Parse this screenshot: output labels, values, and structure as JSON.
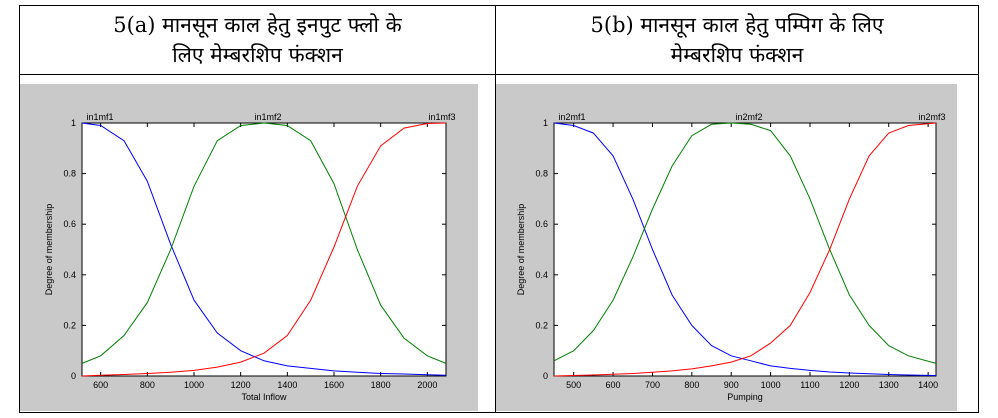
{
  "captions": {
    "left": {
      "line1": "5(a) मानसून काल हेतु इनपुट फ्लो के",
      "line2": "लिए मेम्बरशिप फंक्शन"
    },
    "right": {
      "line1": "5(b) मानसून काल हेतु पम्पिग के लिए",
      "line2": "मेम्बरशिप फंक्शन"
    }
  },
  "chart_data": [
    {
      "type": "line",
      "xlabel": "Total Inflow",
      "ylabel": "Degree of membership",
      "xlim": [
        520,
        2080
      ],
      "ylim": [
        0,
        1
      ],
      "xticks": [
        "600",
        "800",
        "1000",
        "1200",
        "1400",
        "1600",
        "1800",
        "2000"
      ],
      "xtick_values": [
        600,
        800,
        1000,
        1200,
        1400,
        1600,
        1800,
        2000
      ],
      "yticks": [
        "0",
        "0.2",
        "0.4",
        "0.6",
        "0.8",
        "1"
      ],
      "ytick_values": [
        0,
        0.2,
        0.4,
        0.6,
        0.8,
        1
      ],
      "mf_labels": [
        "in1mf1",
        "in1mf2",
        "in1mf3"
      ],
      "series": [
        {
          "color": "#0000ff",
          "x": [
            520,
            600,
            700,
            800,
            900,
            1000,
            1100,
            1200,
            1300,
            1400,
            1500,
            1600,
            1700,
            1800,
            1900,
            2000,
            2080
          ],
          "values": [
            1.0,
            0.99,
            0.93,
            0.77,
            0.52,
            0.3,
            0.17,
            0.1,
            0.06,
            0.04,
            0.03,
            0.02,
            0.015,
            0.01,
            0.008,
            0.005,
            0.003
          ]
        },
        {
          "color": "#008000",
          "x": [
            520,
            600,
            700,
            800,
            900,
            1000,
            1100,
            1200,
            1300,
            1400,
            1500,
            1600,
            1700,
            1800,
            1900,
            2000,
            2080
          ],
          "values": [
            0.05,
            0.08,
            0.16,
            0.29,
            0.5,
            0.75,
            0.93,
            0.99,
            1.0,
            0.99,
            0.93,
            0.76,
            0.5,
            0.28,
            0.15,
            0.08,
            0.05
          ]
        },
        {
          "color": "#ff0000",
          "x": [
            520,
            600,
            700,
            800,
            900,
            1000,
            1100,
            1200,
            1300,
            1400,
            1500,
            1600,
            1700,
            1800,
            1900,
            2000,
            2080
          ],
          "values": [
            0.0,
            0.003,
            0.006,
            0.01,
            0.015,
            0.022,
            0.035,
            0.055,
            0.09,
            0.16,
            0.3,
            0.51,
            0.75,
            0.91,
            0.98,
            0.998,
            1.0
          ]
        }
      ]
    },
    {
      "type": "line",
      "xlabel": "Pumping",
      "ylabel": "Degree of membership",
      "xlim": [
        450,
        1420
      ],
      "ylim": [
        0,
        1
      ],
      "xticks": [
        "500",
        "600",
        "700",
        "800",
        "900",
        "1000",
        "1100",
        "1200",
        "1300",
        "1400"
      ],
      "xtick_values": [
        500,
        600,
        700,
        800,
        900,
        1000,
        1100,
        1200,
        1300,
        1400
      ],
      "yticks": [
        "0",
        "0.2",
        "0.4",
        "0.6",
        "0.8",
        "1"
      ],
      "ytick_values": [
        0,
        0.2,
        0.4,
        0.6,
        0.8,
        1
      ],
      "mf_labels": [
        "in2mf1",
        "in2mf2",
        "in2mf3"
      ],
      "series": [
        {
          "color": "#0000ff",
          "x": [
            450,
            500,
            550,
            600,
            650,
            700,
            750,
            800,
            850,
            900,
            950,
            1000,
            1050,
            1100,
            1150,
            1200,
            1250,
            1300,
            1350,
            1420
          ],
          "values": [
            1.0,
            0.99,
            0.96,
            0.87,
            0.7,
            0.5,
            0.32,
            0.2,
            0.12,
            0.08,
            0.06,
            0.04,
            0.03,
            0.022,
            0.016,
            0.012,
            0.009,
            0.006,
            0.004,
            0.002
          ]
        },
        {
          "color": "#008000",
          "x": [
            450,
            500,
            550,
            600,
            650,
            700,
            750,
            800,
            850,
            900,
            950,
            1000,
            1050,
            1100,
            1150,
            1200,
            1250,
            1300,
            1350,
            1420
          ],
          "values": [
            0.06,
            0.1,
            0.18,
            0.3,
            0.47,
            0.66,
            0.83,
            0.95,
            0.995,
            1.0,
            0.995,
            0.97,
            0.87,
            0.7,
            0.5,
            0.32,
            0.2,
            0.12,
            0.08,
            0.05
          ]
        },
        {
          "color": "#ff0000",
          "x": [
            450,
            500,
            550,
            600,
            650,
            700,
            750,
            800,
            850,
            900,
            950,
            1000,
            1050,
            1100,
            1150,
            1200,
            1250,
            1300,
            1350,
            1420
          ],
          "values": [
            0.0,
            0.002,
            0.004,
            0.007,
            0.01,
            0.015,
            0.02,
            0.028,
            0.04,
            0.055,
            0.08,
            0.13,
            0.2,
            0.33,
            0.5,
            0.7,
            0.87,
            0.96,
            0.99,
            1.0
          ]
        }
      ]
    }
  ]
}
